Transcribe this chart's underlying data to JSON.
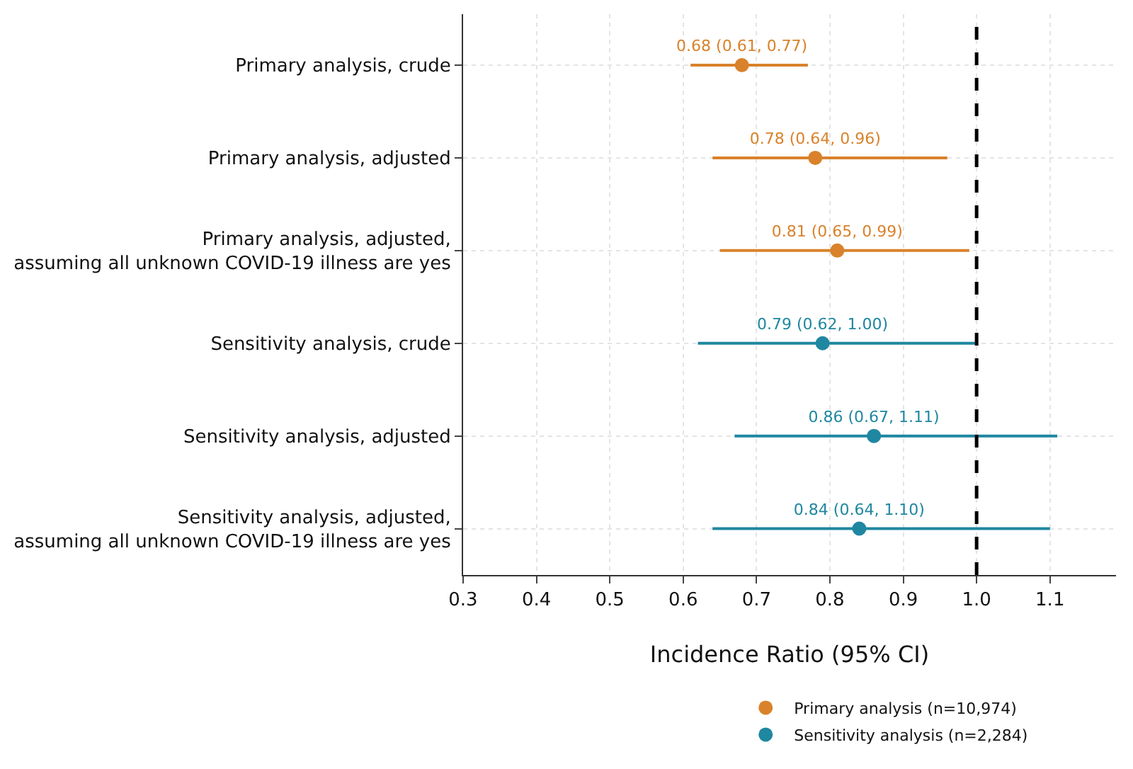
{
  "chart_data": {
    "type": "scatter",
    "orientation": "horizontal",
    "xlabel": "Incidence Ratio (95% CI)",
    "categories": [
      "Primary analysis, crude",
      "Primary analysis, adjusted",
      "Primary analysis, adjusted,\nassuming all unknown COVID-19 illness are yes",
      "Sensitivity analysis, crude",
      "Sensitivity analysis, adjusted",
      "Sensitivity analysis, adjusted,\nassuming all unknown COVID-19 illness are yes"
    ],
    "series": [
      {
        "name": "Primary analysis (n=10,974)",
        "color": "#d9822b",
        "values": [
          0.68,
          0.78,
          0.81,
          null,
          null,
          null
        ],
        "errors": [
          [
            0.61,
            0.77
          ],
          [
            0.64,
            0.96
          ],
          [
            0.65,
            0.99
          ],
          null,
          null,
          null
        ],
        "value_labels": [
          "0.68 (0.61, 0.77)",
          "0.78 (0.64, 0.96)",
          "0.81 (0.65, 0.99)",
          null,
          null,
          null
        ]
      },
      {
        "name": "Sensitivity analysis (n=2,284)",
        "color": "#1f87a0",
        "values": [
          null,
          null,
          null,
          0.79,
          0.86,
          0.84
        ],
        "errors": [
          null,
          null,
          null,
          [
            0.62,
            1.0
          ],
          [
            0.67,
            1.11
          ],
          [
            0.64,
            1.1
          ]
        ],
        "value_labels": [
          null,
          null,
          null,
          "0.79 (0.62, 1.00)",
          "0.86 (0.67, 1.11)",
          "0.84 (0.64, 1.10)"
        ]
      }
    ],
    "xlim": [
      0.3,
      1.19
    ],
    "xticks": [
      0.3,
      0.4,
      0.5,
      0.6,
      0.7,
      0.8,
      0.9,
      {
        "value": 1.0,
        "label": "1.0"
      },
      1.1
    ],
    "ref_lines": [
      {
        "axis": "x",
        "value": 1.0,
        "color": "#000000",
        "line_style": "dashed"
      }
    ],
    "grid": true,
    "legend": "bottom",
    "marker": "circle"
  }
}
